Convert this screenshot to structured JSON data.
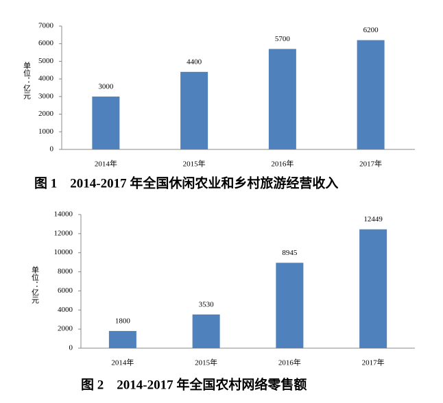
{
  "chart_data": [
    {
      "type": "bar",
      "title": "图 1　2014-2017 年全国休闲农业和乡村旅游经营收入",
      "y_label": "单位：亿元",
      "categories": [
        "2014年",
        "2015年",
        "2016年",
        "2017年"
      ],
      "values": [
        3000,
        4400,
        5700,
        6200
      ],
      "color": "#4f81bd",
      "ylim": [
        0,
        7000
      ],
      "yticks": [
        0,
        1000,
        2000,
        3000,
        4000,
        5000,
        6000,
        7000
      ],
      "grid": false
    },
    {
      "type": "bar",
      "title": "图 2　2014-2017 年全国农村网络零售额",
      "y_label": "单位：亿元",
      "categories": [
        "2014年",
        "2015年",
        "2016年",
        "2017年"
      ],
      "values": [
        1800,
        3530,
        8945,
        12449
      ],
      "color": "#4f81bd",
      "ylim": [
        0,
        14000
      ],
      "yticks": [
        0,
        2000,
        4000,
        6000,
        8000,
        10000,
        12000,
        14000
      ],
      "grid": false
    }
  ]
}
